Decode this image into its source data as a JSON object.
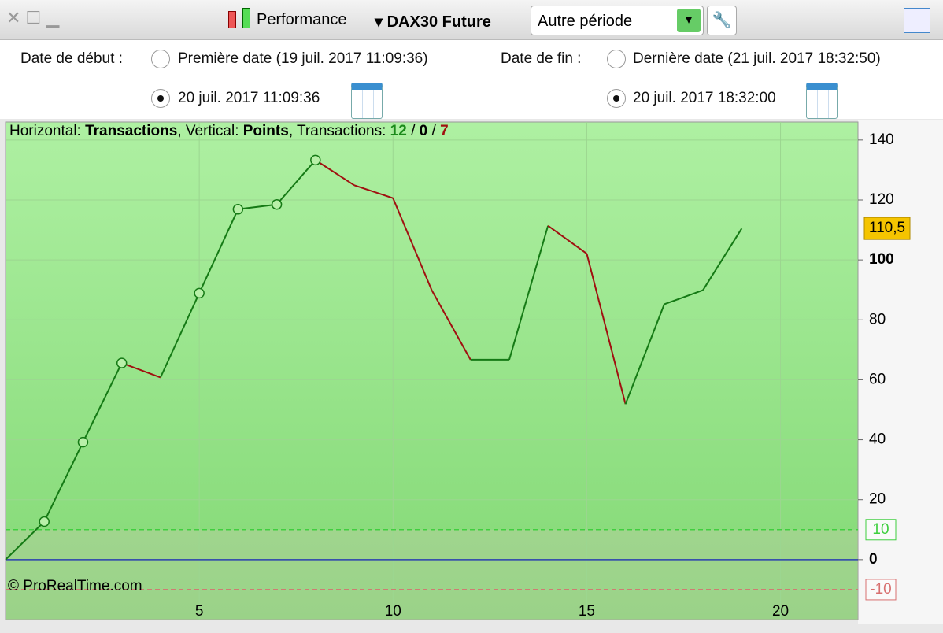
{
  "toolbar": {
    "indicator": "Performance",
    "instrument": "DAX30 Future",
    "period": "Autre période"
  },
  "dates": {
    "start_label": "Date de début :",
    "start_option_1": "Première date (19 juil. 2017 11:09:36)",
    "start_option_2": "20 juil. 2017 11:09:36",
    "end_label": "Date de fin :",
    "end_option_1": "Dernière date (21 juil. 2017 18:32:50)",
    "end_option_2": "20 juil. 2017 18:32:00"
  },
  "chart_data": {
    "type": "line",
    "caption": {
      "h_label": "Horizontal: ",
      "x_label": "Transactions",
      "v_label": ", Vertical: ",
      "y_label": "Points",
      "count_label": ", Transactions: ",
      "wins": 12,
      "sep": " / ",
      "neutral": 0,
      "losses": 7
    },
    "copyright": "© ProRealTime.com",
    "x": [
      0,
      1,
      2,
      3,
      4,
      5,
      6,
      7,
      8,
      9,
      10,
      11,
      12,
      13,
      14,
      15,
      16,
      17,
      18,
      19
    ],
    "series": [
      {
        "values": [
          0,
          12.7,
          39.2,
          65.6,
          60.8,
          88.9,
          116.9,
          118.5,
          133.3,
          124.9,
          120.6,
          89.9,
          66.7,
          66.7,
          111.4,
          102.1,
          51.9,
          85.2,
          89.9,
          110.5
        ],
        "up_color": "#157a15",
        "down_color": "#a01010"
      }
    ],
    "xlim": [
      0,
      22
    ],
    "xticks": [
      5,
      10,
      15,
      20
    ],
    "ylim": [
      -20,
      146
    ],
    "yticks": [
      0,
      20,
      40,
      60,
      80,
      100,
      120,
      140
    ],
    "bold_yticks": [
      0,
      100
    ],
    "grid": true,
    "zero_line_color": "#2a3fb0",
    "ref_lines": [
      {
        "value": 10,
        "color": "#3fcf3f"
      },
      {
        "value": -10,
        "color": "#d87070"
      }
    ],
    "last_value": {
      "value": 110.5,
      "label": "110,5"
    }
  }
}
